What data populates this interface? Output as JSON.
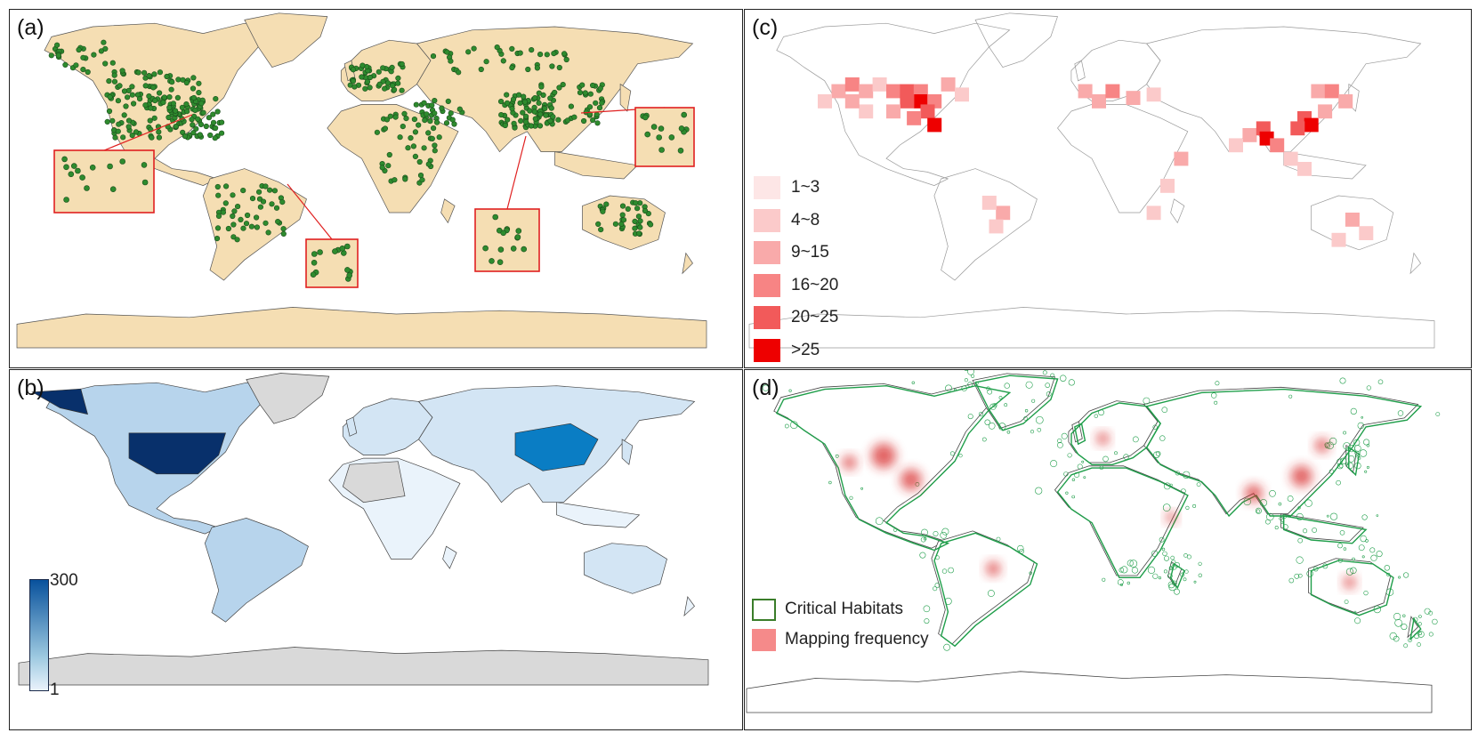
{
  "panels": {
    "a": {
      "label": "(a)"
    },
    "b": {
      "label": "(b)",
      "colorbar": {
        "max": "300",
        "min": "1"
      }
    },
    "c": {
      "label": "(c)",
      "legend": [
        {
          "label": "1~3",
          "color": "#fde6e6"
        },
        {
          "label": "4~8",
          "color": "#fbcaca"
        },
        {
          "label": "9~15",
          "color": "#f9aaaa"
        },
        {
          "label": "16~20",
          "color": "#f78484"
        },
        {
          "label": "20~25",
          "color": "#f25a5a"
        },
        {
          "label": ">25",
          "color": "#ee0000"
        }
      ]
    },
    "d": {
      "label": "(d)",
      "legend": [
        {
          "label": "Critical Habitats",
          "color": "#3a7d2a"
        },
        {
          "label": "Mapping frequency",
          "color": "#f58a8a"
        }
      ]
    }
  },
  "colors": {
    "land_a": "#f5deb3",
    "point": "#2e8b2e",
    "inset_border": "#e02020",
    "no_data": "#d9d9d9",
    "habitat": "#1f9e4a",
    "blues": [
      "#eaf3fb",
      "#d3e5f4",
      "#b7d4ec",
      "#0a7dc4",
      "#08306b"
    ]
  }
}
